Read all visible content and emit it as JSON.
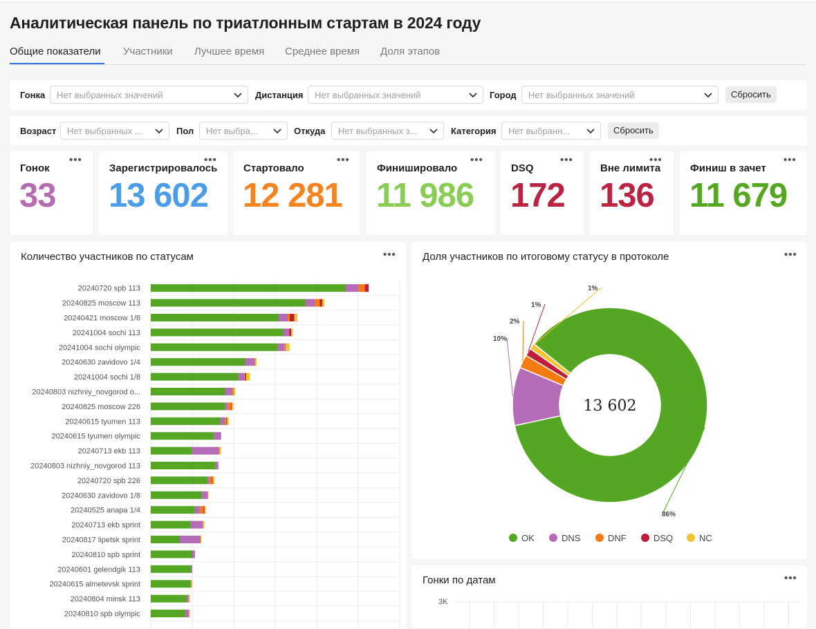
{
  "page": {
    "title": "Аналитическая панель по триатлонным стартам в 2024 году"
  },
  "tabs": [
    {
      "label": "Общие показатели",
      "active": true
    },
    {
      "label": "Участники"
    },
    {
      "label": "Лучшее время"
    },
    {
      "label": "Среднее время"
    },
    {
      "label": "Доля этапов"
    }
  ],
  "filters": {
    "row1": {
      "race": {
        "label": "Гонка",
        "placeholder": "Нет выбранных значений"
      },
      "distance": {
        "label": "Дистанция",
        "placeholder": "Нет выбранных значений"
      },
      "city": {
        "label": "Город",
        "placeholder": "Нет выбранных значений"
      },
      "reset_label": "Сбросить"
    },
    "row2": {
      "age": {
        "label": "Возраст",
        "placeholder": "Нет выбранных ..."
      },
      "gender": {
        "label": "Пол",
        "placeholder": "Нет выбра..."
      },
      "origin": {
        "label": "Откуда",
        "placeholder": "Нет выбранных з..."
      },
      "category": {
        "label": "Категория",
        "placeholder": "Нет выбранн..."
      },
      "reset_label": "Сбросить"
    }
  },
  "kpis": [
    {
      "label": "Гонок",
      "value": "33",
      "color": "#b66cb0"
    },
    {
      "label": "Зарегистрировалось",
      "value": "13 602",
      "color": "#4b9de8"
    },
    {
      "label": "Стартовало",
      "value": "12 281",
      "color": "#f58320"
    },
    {
      "label": "Финишировало",
      "value": "11 986",
      "color": "#8acd54"
    },
    {
      "label": "DSQ",
      "value": "172",
      "color": "#bb2342"
    },
    {
      "label": "Вне лимита",
      "value": "136",
      "color": "#bb2342"
    },
    {
      "label": "Финиш в зачет",
      "value": "11 679",
      "color": "#55a623"
    }
  ],
  "menu_dots": "•••",
  "status_colors": {
    "OK": "#55a623",
    "DNS": "#b46cb6",
    "DNF": "#f47b0f",
    "DSQ": "#bd1f3b",
    "NC": "#f4c430"
  },
  "bar_chart": {
    "title": "Количество участников по статусам",
    "chart_data": {
      "type": "bar",
      "orientation": "horizontal",
      "stacked": true,
      "categories": [
        "20240720 spb 113",
        "20240825 moscow 113",
        "20240421 moscow 1/8",
        "20241004 sochi 113",
        "20241004 sochi olympic",
        "20240630 zavidovo 1/4",
        "20241004 sochi 1/8",
        "20240803 nizhniy_novgorod o...",
        "20240825 moscow 226",
        "20240615 tyumen 113",
        "20240615 tyumen olympic",
        "20240713 ekb 113",
        "20240803 nizhniy_novgorod 113",
        "20240720 spb 226",
        "20240630 zavidovo 1/8",
        "20240525 anapa 1/4",
        "20240713 ekb sprint",
        "20240817 lipetsk sprint",
        "20240810 spb sprint",
        "20240601 gelendgik 113",
        "20240615 almetevsk sprint",
        "20240804 minsk 113",
        "20240810 spb olympic"
      ],
      "series": [
        {
          "name": "OK",
          "values": [
            940,
            745,
            615,
            640,
            610,
            455,
            422,
            360,
            357,
            335,
            303,
            198,
            310,
            270,
            247,
            212,
            193,
            140,
            200,
            193,
            190,
            173,
            167
          ]
        },
        {
          "name": "DNS",
          "values": [
            62,
            45,
            45,
            25,
            34,
            42,
            30,
            34,
            14,
            24,
            36,
            131,
            16,
            12,
            28,
            24,
            57,
            100,
            13,
            7,
            5,
            10,
            17
          ]
        },
        {
          "name": "DNF",
          "values": [
            30,
            25,
            10,
            2,
            2,
            2,
            3,
            3,
            16,
            6,
            0,
            3,
            0,
            13,
            0,
            18,
            2,
            0,
            0,
            0,
            0,
            0,
            0
          ]
        },
        {
          "name": "DSQ",
          "values": [
            18,
            12,
            22,
            10,
            3,
            3,
            5,
            2,
            3,
            3,
            0,
            0,
            0,
            4,
            0,
            5,
            0,
            0,
            0,
            0,
            0,
            0,
            0
          ]
        },
        {
          "name": "NC",
          "values": [
            0,
            10,
            15,
            7,
            20,
            8,
            18,
            8,
            9,
            8,
            0,
            7,
            0,
            8,
            3,
            7,
            7,
            4,
            0,
            0,
            6,
            6,
            5
          ]
        }
      ],
      "grid": true
    }
  },
  "donut_chart": {
    "title": "Доля участников по итоговому статусу в протоколе",
    "center_label": "13 602",
    "chart_data": {
      "type": "pie",
      "donut": true,
      "labels": [
        "OK",
        "DNS",
        "DNF",
        "DSQ",
        "NC"
      ],
      "values": [
        0.858,
        0.097,
        0.022,
        0.013,
        0.01
      ],
      "data_labels": [
        "86%",
        "10%",
        "2%",
        "1%",
        "1%"
      ],
      "legend": "bottom"
    }
  },
  "dates_chart": {
    "title": "Гонки по датам",
    "chart_data": {
      "type": "bar",
      "ytick_labels": [
        "3K"
      ]
    }
  }
}
